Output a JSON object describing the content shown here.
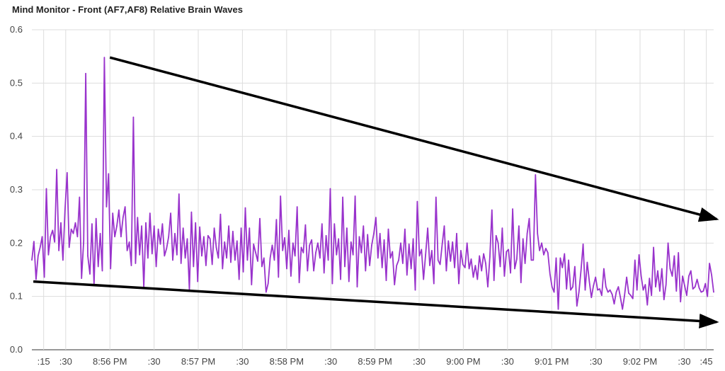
{
  "chart_data": {
    "type": "line",
    "title": "Mind Monitor - Front (AF7,AF8) Relative Brain Waves",
    "xlabel": "",
    "ylabel": "",
    "ylim": [
      0,
      0.6
    ],
    "yticks": [
      0.0,
      0.1,
      0.2,
      0.3,
      0.4,
      0.5,
      0.6
    ],
    "ytick_labels": [
      "0.0",
      "0.1",
      "0.2",
      "0.3",
      "0.4",
      "0.5",
      "0.6"
    ],
    "xrange": [
      "8:55:07 PM",
      "9:02:50 PM"
    ],
    "xtick_labels": [
      {
        "label": ":15",
        "t": "8:55:15 PM"
      },
      {
        "label": ":30",
        "t": "8:55:30 PM"
      },
      {
        "label": "8:56 PM",
        "t": "8:56:00 PM"
      },
      {
        "label": ":30",
        "t": "8:56:30 PM"
      },
      {
        "label": "8:57 PM",
        "t": "8:57:00 PM"
      },
      {
        "label": ":30",
        "t": "8:57:30 PM"
      },
      {
        "label": "8:58 PM",
        "t": "8:58:00 PM"
      },
      {
        "label": ":30",
        "t": "8:58:30 PM"
      },
      {
        "label": "8:59 PM",
        "t": "8:59:00 PM"
      },
      {
        "label": ":30",
        "t": "8:59:30 PM"
      },
      {
        "label": "9:00 PM",
        "t": "9:00:00 PM"
      },
      {
        "label": ":30",
        "t": "9:00:30 PM"
      },
      {
        "label": "9:01 PM",
        "t": "9:01:00 PM"
      },
      {
        "label": ":30",
        "t": "9:01:30 PM"
      },
      {
        "label": "9:02 PM",
        "t": "9:02:00 PM"
      },
      {
        "label": ":30",
        "t": "9:02:30 PM"
      },
      {
        "label": ":45",
        "t": "9:02:45 PM"
      }
    ],
    "grid": true,
    "legend": "none",
    "series": [
      {
        "color": "#9933cc",
        "x_start": "8:55:07 PM",
        "x_end": "9:02:50 PM",
        "values": [
          0.168,
          0.203,
          0.132,
          0.176,
          0.192,
          0.212,
          0.136,
          0.302,
          0.178,
          0.212,
          0.224,
          0.202,
          0.338,
          0.186,
          0.238,
          0.168,
          0.262,
          0.332,
          0.192,
          0.226,
          0.218,
          0.238,
          0.212,
          0.286,
          0.134,
          0.204,
          0.518,
          0.176,
          0.142,
          0.236,
          0.122,
          0.246,
          0.156,
          0.218,
          0.148,
          0.548,
          0.268,
          0.33,
          0.152,
          0.256,
          0.212,
          0.232,
          0.262,
          0.212,
          0.248,
          0.268,
          0.186,
          0.202,
          0.158,
          0.436,
          0.162,
          0.248,
          0.178,
          0.232,
          0.116,
          0.238,
          0.172,
          0.256,
          0.18,
          0.232,
          0.156,
          0.226,
          0.198,
          0.236,
          0.176,
          0.19,
          0.212,
          0.256,
          0.168,
          0.218,
          0.178,
          0.292,
          0.162,
          0.228,
          0.172,
          0.208,
          0.112,
          0.258,
          0.156,
          0.238,
          0.128,
          0.23,
          0.176,
          0.212,
          0.158,
          0.214,
          0.208,
          0.16,
          0.228,
          0.192,
          0.172,
          0.254,
          0.152,
          0.202,
          0.172,
          0.232,
          0.164,
          0.222,
          0.168,
          0.204,
          0.132,
          0.228,
          0.146,
          0.266,
          0.168,
          0.228,
          0.122,
          0.198,
          0.182,
          0.166,
          0.246,
          0.156,
          0.172,
          0.108,
          0.124,
          0.172,
          0.196,
          0.168,
          0.244,
          0.136,
          0.288,
          0.186,
          0.21,
          0.152,
          0.224,
          0.138,
          0.2,
          0.176,
          0.268,
          0.126,
          0.192,
          0.182,
          0.234,
          0.148,
          0.196,
          0.206,
          0.148,
          0.182,
          0.2,
          0.172,
          0.236,
          0.144,
          0.214,
          0.168,
          0.302,
          0.124,
          0.236,
          0.178,
          0.208,
          0.132,
          0.286,
          0.156,
          0.228,
          0.128,
          0.202,
          0.178,
          0.288,
          0.118,
          0.212,
          0.182,
          0.232,
          0.148,
          0.216,
          0.158,
          0.196,
          0.218,
          0.248,
          0.172,
          0.218,
          0.154,
          0.206,
          0.13,
          0.226,
          0.172,
          0.184,
          0.122,
          0.158,
          0.168,
          0.2,
          0.162,
          0.226,
          0.14,
          0.198,
          0.152,
          0.208,
          0.112,
          0.278,
          0.176,
          0.188,
          0.132,
          0.178,
          0.228,
          0.158,
          0.186,
          0.124,
          0.286,
          0.168,
          0.16,
          0.198,
          0.232,
          0.148,
          0.204,
          0.166,
          0.202,
          0.154,
          0.218,
          0.124,
          0.186,
          0.16,
          0.154,
          0.2,
          0.152,
          0.17,
          0.136,
          0.158,
          0.132,
          0.176,
          0.148,
          0.18,
          0.162,
          0.118,
          0.174,
          0.262,
          0.13,
          0.214,
          0.2,
          0.156,
          0.228,
          0.138,
          0.184,
          0.188,
          0.144,
          0.264,
          0.152,
          0.17,
          0.232,
          0.126,
          0.208,
          0.162,
          0.218,
          0.246,
          0.168,
          0.168,
          0.328,
          0.218,
          0.186,
          0.2,
          0.178,
          0.19,
          0.182,
          0.142,
          0.118,
          0.108,
          0.172,
          0.076,
          0.172,
          0.154,
          0.18,
          0.114,
          0.168,
          0.112,
          0.118,
          0.156,
          0.082,
          0.108,
          0.15,
          0.198,
          0.112,
          0.164,
          0.128,
          0.098,
          0.12,
          0.136,
          0.112,
          0.114,
          0.102,
          0.152,
          0.118,
          0.108,
          0.112,
          0.104,
          0.086,
          0.108,
          0.118,
          0.098,
          0.076,
          0.102,
          0.136,
          0.106,
          0.102,
          0.096,
          0.168,
          0.112,
          0.178,
          0.138,
          0.112,
          0.122,
          0.084,
          0.134,
          0.102,
          0.192,
          0.118,
          0.148,
          0.11,
          0.152,
          0.094,
          0.122,
          0.2,
          0.152,
          0.138,
          0.176,
          0.11,
          0.182,
          0.09,
          0.138,
          0.12,
          0.102,
          0.138,
          0.148,
          0.114,
          0.118,
          0.132,
          0.116,
          0.108,
          0.11,
          0.124,
          0.1,
          0.162,
          0.14,
          0.108
        ]
      }
    ],
    "annotations": [
      {
        "type": "arrow",
        "description": "upper trend arrow",
        "from": {
          "t": "8:56:00 PM",
          "y": 0.548
        },
        "to": {
          "t": "9:02:52 PM",
          "y": 0.245
        }
      },
      {
        "type": "arrow",
        "description": "lower trend arrow",
        "from": {
          "t": "8:55:08 PM",
          "y": 0.128
        },
        "to": {
          "t": "9:02:52 PM",
          "y": 0.052
        }
      }
    ]
  }
}
